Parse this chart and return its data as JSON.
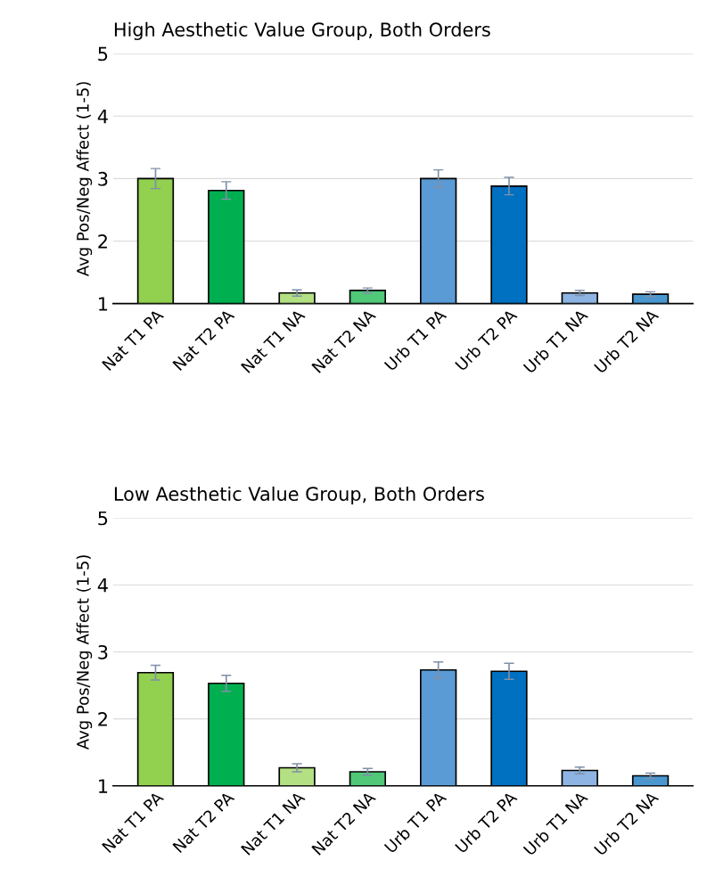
{
  "chart_data": [
    {
      "type": "bar",
      "title": "High Aesthetic Value Group, Both Orders",
      "ylabel": "Avg Pos/Neg Affect (1-5)",
      "categories": [
        "Nat T1 PA",
        "Nat T2 PA",
        "Nat T1 NA",
        "Nat T2 NA",
        "Urb T1 PA",
        "Urb T2 PA",
        "Urb T1 NA",
        "Urb T2 NA"
      ],
      "values": [
        3.0,
        2.81,
        1.17,
        1.21,
        3.0,
        2.88,
        1.17,
        1.15
      ],
      "errors": [
        0.16,
        0.14,
        0.05,
        0.04,
        0.14,
        0.14,
        0.04,
        0.04
      ],
      "colors": [
        "#92d050",
        "#00b050",
        "#b4e084",
        "#50c878",
        "#5b9bd5",
        "#0070c0",
        "#8db4e2",
        "#4a97d0"
      ],
      "ylim": [
        1,
        5
      ],
      "yticks": [
        1,
        2,
        3,
        4,
        5
      ],
      "grid": "y"
    },
    {
      "type": "bar",
      "title": "Low Aesthetic Value Group, Both Orders",
      "ylabel": "Avg Pos/Neg Affect (1-5)",
      "categories": [
        "Nat T1 PA",
        "Nat T2 PA",
        "Nat T1 NA",
        "Nat T2 NA",
        "Urb T1 PA",
        "Urb T2 PA",
        "Urb T1 NA",
        "Urb T2 NA"
      ],
      "values": [
        2.69,
        2.53,
        1.27,
        1.21,
        2.73,
        2.71,
        1.23,
        1.15
      ],
      "errors": [
        0.11,
        0.12,
        0.06,
        0.05,
        0.12,
        0.12,
        0.05,
        0.04
      ],
      "colors": [
        "#92d050",
        "#00b050",
        "#b4e084",
        "#50c878",
        "#5b9bd5",
        "#0070c0",
        "#8db4e2",
        "#4a97d0"
      ],
      "ylim": [
        1,
        5
      ],
      "yticks": [
        1,
        2,
        3,
        4,
        5
      ],
      "grid": "y"
    }
  ]
}
